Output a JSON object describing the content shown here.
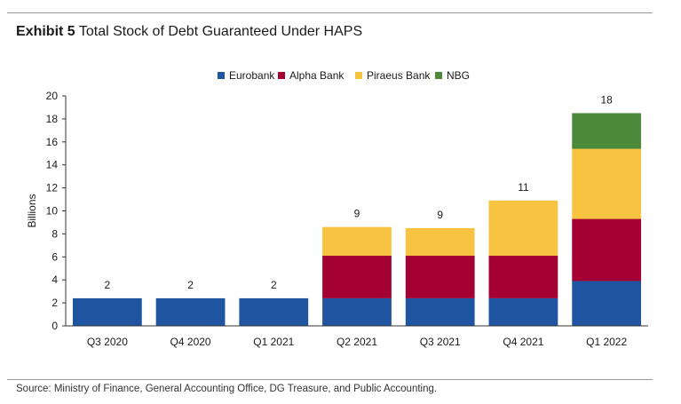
{
  "exhibit": {
    "label": "Exhibit 5",
    "title": "Total Stock of Debt Guaranteed Under HAPS"
  },
  "source": "Source: Ministry of Finance, General Accounting Office, DG Treasure, and Public Accounting.",
  "chart_data": {
    "type": "bar",
    "stacked": true,
    "categories": [
      "Q3 2020",
      "Q4 2020",
      "Q1 2021",
      "Q2 2021",
      "Q3 2021",
      "Q4 2021",
      "Q1 2022"
    ],
    "series": [
      {
        "name": "Eurobank",
        "color": "#1f54a0",
        "values": [
          2.4,
          2.4,
          2.4,
          2.4,
          2.4,
          2.4,
          3.9
        ]
      },
      {
        "name": "Alpha Bank",
        "color": "#a50034",
        "values": [
          0,
          0,
          0,
          3.7,
          3.7,
          3.7,
          5.4
        ]
      },
      {
        "name": "Piraeus Bank",
        "color": "#f7c340",
        "values": [
          0,
          0,
          0,
          2.5,
          2.4,
          4.8,
          6.1
        ]
      },
      {
        "name": "NBG",
        "color": "#4b8a3a",
        "values": [
          0,
          0,
          0,
          0,
          0,
          0,
          3.1
        ]
      }
    ],
    "totals_labels": [
      "2",
      "2",
      "2",
      "9",
      "9",
      "11",
      "18"
    ],
    "ylabel": "Billions",
    "ylim": [
      0,
      20
    ],
    "yticks": [
      0,
      2,
      4,
      6,
      8,
      10,
      12,
      14,
      16,
      18,
      20
    ],
    "grid": false,
    "legend": "top-center"
  }
}
